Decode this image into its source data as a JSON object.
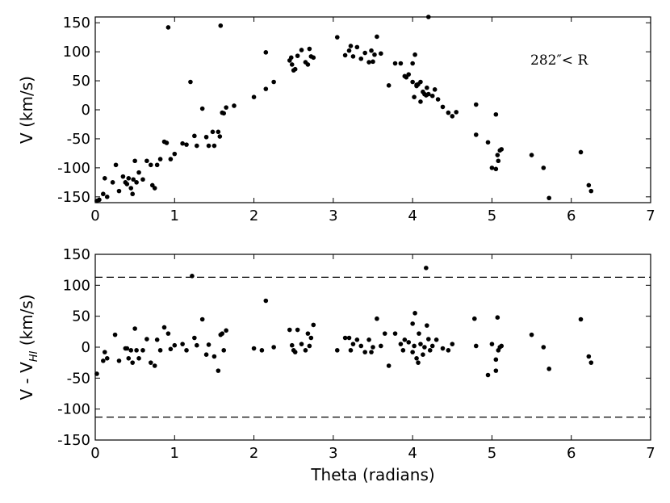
{
  "chart_data": [
    {
      "type": "scatter",
      "title": "",
      "xlabel": "",
      "ylabel": "V (km/s)",
      "xlim": [
        0,
        7
      ],
      "ylim": [
        -160,
        160
      ],
      "xticks": [
        0,
        1,
        2,
        3,
        4,
        5,
        6,
        7
      ],
      "yticks": [
        -150,
        -100,
        -50,
        0,
        50,
        100,
        150
      ],
      "grid": false,
      "annotation": {
        "text": "282″< R"
      },
      "series": [
        {
          "x": [
            0.02,
            0.05,
            0.1,
            0.12,
            0.15,
            0.22,
            0.26,
            0.3,
            0.35,
            0.38,
            0.4,
            0.42,
            0.45,
            0.47,
            0.48,
            0.5,
            0.52,
            0.55,
            0.6,
            0.65,
            0.7,
            0.72,
            0.75,
            0.78,
            0.82,
            0.87,
            0.9,
            0.92,
            0.95,
            1.0,
            1.1,
            1.15,
            1.2,
            1.25,
            1.28,
            1.35,
            1.4,
            1.43,
            1.48,
            1.5,
            1.55,
            1.57,
            1.58,
            1.6,
            1.62,
            1.65,
            1.75,
            2.0,
            2.15,
            2.15,
            2.25,
            2.45,
            2.47,
            2.48,
            2.5,
            2.52,
            2.55,
            2.6,
            2.65,
            2.68,
            2.7,
            2.72,
            2.75,
            3.05,
            3.15,
            3.2,
            3.22,
            3.25,
            3.3,
            3.35,
            3.4,
            3.45,
            3.48,
            3.5,
            3.52,
            3.55,
            3.6,
            3.7,
            3.78,
            3.85,
            3.9,
            3.92,
            3.95,
            4.0,
            4.0,
            4.02,
            4.03,
            4.05,
            4.05,
            4.07,
            4.1,
            4.1,
            4.13,
            4.15,
            4.17,
            4.18,
            4.2,
            4.2,
            4.25,
            4.28,
            4.32,
            4.38,
            4.45,
            4.5,
            4.55,
            4.8,
            4.8,
            4.95,
            5.0,
            5.05,
            5.05,
            5.07,
            5.08,
            5.1,
            5.12,
            5.5,
            5.65,
            5.72,
            6.12,
            6.22,
            6.25
          ],
          "y": [
            -157,
            -155,
            -145,
            -118,
            -150,
            -125,
            -95,
            -140,
            -115,
            -125,
            -128,
            -118,
            -135,
            -145,
            -120,
            -88,
            -125,
            -108,
            -120,
            -88,
            -95,
            -130,
            -135,
            -95,
            -85,
            -55,
            -57,
            142,
            -85,
            -76,
            -58,
            -60,
            48,
            -45,
            -62,
            2,
            -47,
            -62,
            -38,
            -62,
            -38,
            -46,
            145,
            -5,
            -6,
            4,
            7,
            22,
            99,
            36,
            48,
            85,
            90,
            78,
            68,
            70,
            93,
            103,
            82,
            78,
            105,
            92,
            90,
            125,
            94,
            102,
            110,
            92,
            108,
            88,
            98,
            82,
            102,
            83,
            95,
            126,
            97,
            42,
            80,
            80,
            58,
            56,
            61,
            80,
            48,
            22,
            95,
            41,
            43,
            44,
            14,
            48,
            31,
            27,
            25,
            38,
            27,
            162,
            24,
            35,
            18,
            5,
            -5,
            -11,
            -4,
            9,
            -43,
            -56,
            -100,
            -102,
            -8,
            -78,
            -88,
            -70,
            -68,
            -78,
            -100,
            -152,
            -73,
            -130,
            -140
          ]
        }
      ]
    },
    {
      "type": "scatter",
      "title": "",
      "xlabel": "Theta (radians)",
      "ylabel": "V - V_HI (km/s)",
      "ylabel_main": "V - V",
      "ylabel_sub": "HI",
      "ylabel_unit": " (km/s)",
      "xlim": [
        0,
        7
      ],
      "ylim": [
        -150,
        150
      ],
      "xticks": [
        0,
        1,
        2,
        3,
        4,
        5,
        6,
        7
      ],
      "yticks": [
        -150,
        -100,
        -50,
        0,
        50,
        100,
        150
      ],
      "grid": false,
      "reference_lines": [
        113,
        -113
      ],
      "series": [
        {
          "x": [
            0.02,
            0.1,
            0.12,
            0.15,
            0.25,
            0.3,
            0.38,
            0.4,
            0.42,
            0.45,
            0.47,
            0.5,
            0.52,
            0.55,
            0.6,
            0.65,
            0.7,
            0.75,
            0.78,
            0.82,
            0.87,
            0.92,
            0.95,
            1.0,
            1.1,
            1.15,
            1.22,
            1.25,
            1.28,
            1.35,
            1.4,
            1.43,
            1.5,
            1.55,
            1.58,
            1.6,
            1.62,
            1.65,
            2.0,
            2.1,
            2.15,
            2.25,
            2.45,
            2.48,
            2.5,
            2.52,
            2.55,
            2.6,
            2.65,
            2.68,
            2.7,
            2.72,
            2.75,
            3.05,
            3.15,
            3.2,
            3.22,
            3.25,
            3.3,
            3.35,
            3.4,
            3.45,
            3.48,
            3.5,
            3.55,
            3.6,
            3.65,
            3.7,
            3.78,
            3.85,
            3.88,
            3.9,
            3.95,
            4.0,
            4.0,
            4.02,
            4.03,
            4.05,
            4.07,
            4.08,
            4.1,
            4.13,
            4.15,
            4.17,
            4.18,
            4.2,
            4.22,
            4.25,
            4.3,
            4.38,
            4.45,
            4.5,
            4.78,
            4.8,
            4.95,
            5.0,
            5.05,
            5.05,
            5.07,
            5.08,
            5.1,
            5.12,
            5.5,
            5.65,
            5.72,
            6.12,
            6.22,
            6.25
          ],
          "y": [
            -43,
            -22,
            -8,
            -18,
            20,
            -22,
            -2,
            -2,
            -18,
            -5,
            -25,
            30,
            -5,
            -18,
            -5,
            13,
            -25,
            -30,
            12,
            -5,
            32,
            22,
            -3,
            3,
            5,
            -5,
            115,
            15,
            3,
            45,
            -12,
            4,
            -15,
            -38,
            20,
            22,
            -5,
            27,
            -2,
            -5,
            75,
            0,
            28,
            3,
            -5,
            -8,
            28,
            5,
            -5,
            22,
            2,
            15,
            36,
            -5,
            15,
            15,
            -5,
            5,
            12,
            2,
            -8,
            12,
            -8,
            0,
            46,
            2,
            22,
            -30,
            22,
            5,
            -5,
            12,
            8,
            -8,
            38,
            2,
            55,
            -18,
            -25,
            22,
            5,
            -12,
            0,
            128,
            35,
            13,
            -5,
            2,
            12,
            -2,
            -5,
            5,
            46,
            2,
            -45,
            5,
            -38,
            -20,
            48,
            -5,
            0,
            2,
            20,
            0,
            -35,
            45,
            -15,
            -25
          ]
        }
      ]
    }
  ]
}
